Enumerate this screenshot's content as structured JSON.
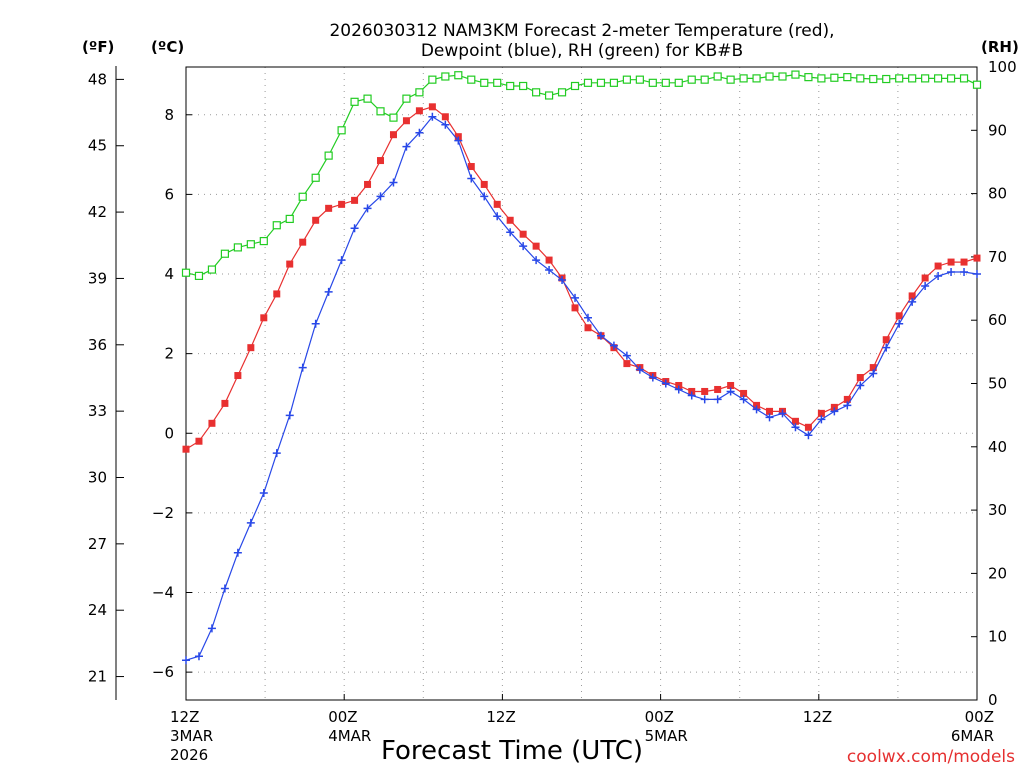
{
  "chart_data": {
    "type": "line",
    "title_line1": "2026030312 NAM3KM Forecast 2-meter Temperature (red),",
    "title_line2": "Dewpoint (blue), RH (green) for KB#B",
    "xlabel": "Forecast Time (UTC)",
    "credit": "coolwx.com/models",
    "unit_f": "(ºF)",
    "unit_c": "(ºC)",
    "unit_rh": "(RH)",
    "x_hours_range": [
      0,
      60
    ],
    "y_c_range": [
      -6.7,
      9.2
    ],
    "y_rh_range": [
      0,
      100
    ],
    "x_ticks": [
      {
        "hour": 0,
        "line1": "12Z",
        "line2": "3MAR",
        "line3": "2026"
      },
      {
        "hour": 12,
        "line1": "00Z",
        "line2": "4MAR",
        "line3": ""
      },
      {
        "hour": 24,
        "line1": "12Z",
        "line2": "",
        "line3": ""
      },
      {
        "hour": 36,
        "line1": "00Z",
        "line2": "5MAR",
        "line3": ""
      },
      {
        "hour": 48,
        "line1": "12Z",
        "line2": "",
        "line3": ""
      },
      {
        "hour": 60,
        "line1": "00Z",
        "line2": "6MAR",
        "line3": ""
      }
    ],
    "y_c_ticks": [
      -6,
      -4,
      -2,
      0,
      2,
      4,
      6,
      8
    ],
    "y_c_tick_labels": [
      "−6",
      "−4",
      "−2",
      "0",
      "2",
      "4",
      "6",
      "8"
    ],
    "y_f_ticks": [
      21,
      24,
      27,
      30,
      33,
      36,
      39,
      42,
      45,
      48
    ],
    "y_rh_ticks": [
      0,
      10,
      20,
      30,
      40,
      50,
      60,
      70,
      80,
      90,
      100
    ],
    "series": [
      {
        "name": "Temperature",
        "color": "#e83030",
        "marker": "square-filled",
        "values": [
          -0.4,
          -0.2,
          0.25,
          0.75,
          1.45,
          2.15,
          2.9,
          3.5,
          4.25,
          4.8,
          5.35,
          5.65,
          5.75,
          5.85,
          6.25,
          6.85,
          7.5,
          7.85,
          8.1,
          8.2,
          7.95,
          7.45,
          6.7,
          6.25,
          5.75,
          5.35,
          5.0,
          4.7,
          4.35,
          3.9,
          3.15,
          2.65,
          2.45,
          2.15,
          1.75,
          1.65,
          1.45,
          1.3,
          1.2,
          1.05,
          1.05,
          1.1,
          1.2,
          1.0,
          0.7,
          0.55,
          0.55,
          0.3,
          0.15,
          0.5,
          0.65,
          0.85,
          1.4,
          1.65,
          2.35,
          2.95,
          3.45,
          3.9,
          4.2,
          4.3,
          4.3,
          4.4
        ]
      },
      {
        "name": "Dewpoint",
        "color": "#2848e8",
        "marker": "plus",
        "values": [
          -5.7,
          -5.6,
          -4.9,
          -3.9,
          -3.0,
          -2.25,
          -1.5,
          -0.5,
          0.45,
          1.65,
          2.75,
          3.55,
          4.35,
          5.15,
          5.65,
          5.95,
          6.3,
          7.2,
          7.55,
          7.95,
          7.75,
          7.35,
          6.4,
          5.95,
          5.45,
          5.05,
          4.7,
          4.35,
          4.1,
          3.85,
          3.4,
          2.9,
          2.45,
          2.2,
          1.95,
          1.6,
          1.4,
          1.25,
          1.1,
          0.95,
          0.85,
          0.85,
          1.05,
          0.85,
          0.6,
          0.4,
          0.5,
          0.15,
          -0.05,
          0.35,
          0.55,
          0.7,
          1.2,
          1.5,
          2.15,
          2.75,
          3.3,
          3.7,
          3.95,
          4.05,
          4.05,
          4.0
        ]
      },
      {
        "name": "RH",
        "color": "#22cc22",
        "marker": "square-open",
        "values": [
          67.5,
          67,
          68,
          70.5,
          71.5,
          72,
          72.5,
          75,
          76,
          79.5,
          82.5,
          86,
          90,
          94.5,
          95,
          93,
          92,
          95,
          96,
          98,
          98.5,
          98.7,
          98,
          97.5,
          97.5,
          97,
          97,
          96,
          95.5,
          96,
          97,
          97.5,
          97.5,
          97.5,
          98,
          98,
          97.5,
          97.5,
          97.5,
          98,
          98,
          98.5,
          98,
          98.2,
          98.2,
          98.5,
          98.5,
          98.8,
          98.4,
          98.2,
          98.3,
          98.4,
          98.2,
          98.1,
          98.1,
          98.2,
          98.2,
          98.2,
          98.2,
          98.2,
          98.2,
          97.2
        ]
      }
    ]
  }
}
